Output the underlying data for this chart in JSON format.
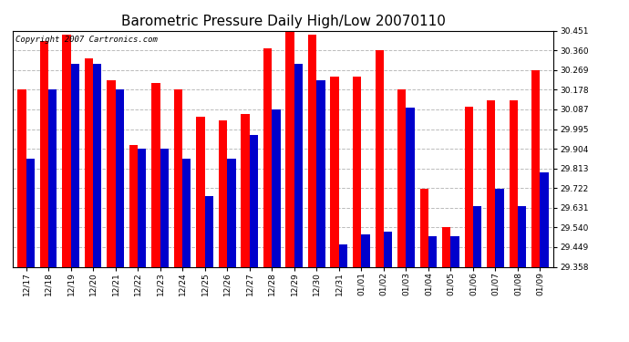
{
  "title": "Barometric Pressure Daily High/Low 20070110",
  "copyright": "Copyright 2007 Cartronics.com",
  "dates": [
    "12/17",
    "12/18",
    "12/19",
    "12/20",
    "12/21",
    "12/22",
    "12/23",
    "12/24",
    "12/25",
    "12/26",
    "12/27",
    "12/28",
    "12/29",
    "12/30",
    "12/31",
    "01/01",
    "01/02",
    "01/03",
    "01/04",
    "01/05",
    "01/06",
    "01/07",
    "01/08",
    "01/09"
  ],
  "highs": [
    30.178,
    30.405,
    30.432,
    30.323,
    30.22,
    29.924,
    30.209,
    30.178,
    30.052,
    30.038,
    30.065,
    30.37,
    30.447,
    30.432,
    30.24,
    30.24,
    30.36,
    30.178,
    29.72,
    29.54,
    30.1,
    30.13,
    30.13,
    30.269
  ],
  "lows": [
    29.858,
    30.178,
    30.296,
    30.296,
    30.178,
    29.904,
    29.904,
    29.858,
    29.686,
    29.858,
    29.97,
    30.087,
    30.296,
    30.222,
    29.462,
    29.51,
    29.52,
    30.097,
    29.5,
    29.5,
    29.64,
    29.72,
    29.64,
    29.795
  ],
  "ylim_min": 29.358,
  "ylim_max": 30.451,
  "yticks": [
    29.358,
    29.449,
    29.54,
    29.631,
    29.722,
    29.813,
    29.904,
    29.995,
    30.087,
    30.178,
    30.269,
    30.36,
    30.451
  ],
  "bar_width": 0.38,
  "high_color": "#ff0000",
  "low_color": "#0000cc",
  "bg_color": "#ffffff",
  "grid_color": "#bbbbbb",
  "title_fontsize": 11,
  "tick_fontsize": 6.5,
  "copyright_fontsize": 6.5,
  "outer_border_color": "#000000"
}
